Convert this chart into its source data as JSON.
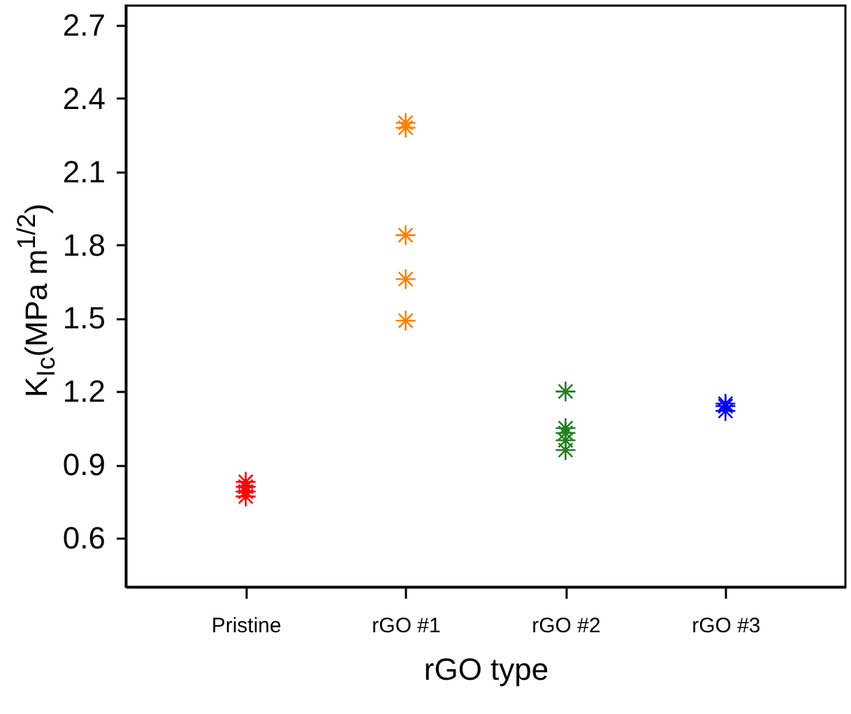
{
  "chart_data": {
    "type": "scatter",
    "xlabel": "rGO type",
    "ylabel": "K$_{Ic}$(MPa m$^{1/2}$)",
    "categories": [
      "Pristine",
      "rGO #1",
      "rGO #2",
      "rGO #3"
    ],
    "series": [
      {
        "color": "#ff0000",
        "x": [
          "Pristine",
          "Pristine",
          "Pristine",
          "Pristine"
        ],
        "values": [
          0.83,
          0.81,
          0.79,
          0.77
        ]
      },
      {
        "color": "#ff8000",
        "x": [
          "rGO #1",
          "rGO #1",
          "rGO #1",
          "rGO #1",
          "rGO #1"
        ],
        "values": [
          2.3,
          2.28,
          1.84,
          1.66,
          1.49
        ]
      },
      {
        "color": "#208020",
        "x": [
          "rGO #2",
          "rGO #2",
          "rGO #2",
          "rGO #2",
          "rGO #2"
        ],
        "values": [
          1.2,
          1.05,
          1.03,
          1.0,
          0.96
        ]
      },
      {
        "color": "#0000ff",
        "x": [
          "rGO #3",
          "rGO #3",
          "rGO #3"
        ],
        "values": [
          1.15,
          1.14,
          1.12
        ]
      }
    ],
    "ylim": [
      0.4,
      2.78
    ],
    "yticks": [
      0.6,
      0.9,
      1.2,
      1.5,
      1.8,
      2.1,
      2.4,
      2.7
    ],
    "marker": "cross",
    "grid": false
  }
}
